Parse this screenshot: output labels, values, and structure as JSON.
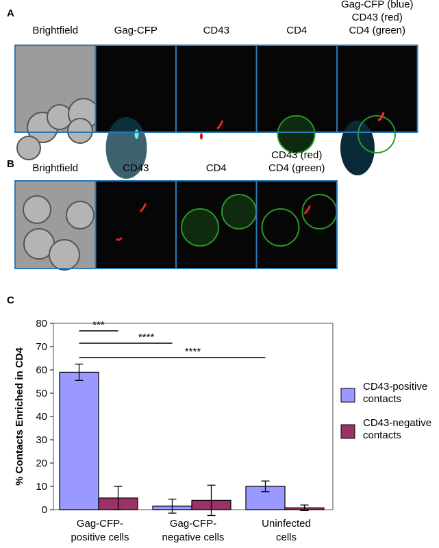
{
  "panel_labels": [
    "A",
    "B",
    "C"
  ],
  "image_titles": {
    "A": [
      "Brightfield",
      "Gag-CFP",
      "CD43",
      "CD4",
      "Gag-CFP (blue)\nCD43 (red)\nCD4 (green)"
    ],
    "B": [
      "Brightfield",
      "CD43",
      "CD4",
      "CD43 (red)\nCD4 (green)"
    ]
  },
  "chart_data": {
    "type": "bar",
    "y_label": "% Contacts Enriched in CD4",
    "categories": [
      "Gag-CFP-\npositive cells",
      "Gag-CFP-\nnegative cells",
      "Uninfected\ncells"
    ],
    "series": [
      {
        "name": "CD43-positive\ncontacts",
        "color": "#9999ff",
        "values": [
          59,
          1.5,
          10
        ],
        "errors": [
          3.5,
          3,
          2.3
        ]
      },
      {
        "name": "CD43-negative\ncontacts",
        "color": "#993366",
        "values": [
          5,
          4,
          0.8
        ],
        "errors": [
          5,
          6.5,
          1.2
        ]
      }
    ],
    "annotations": [
      "***",
      "****",
      "****"
    ],
    "ylim": [
      0,
      80
    ],
    "yticks": [
      0,
      10,
      20,
      30,
      40,
      50,
      60,
      70,
      80
    ],
    "grid": false,
    "legend": "right"
  }
}
